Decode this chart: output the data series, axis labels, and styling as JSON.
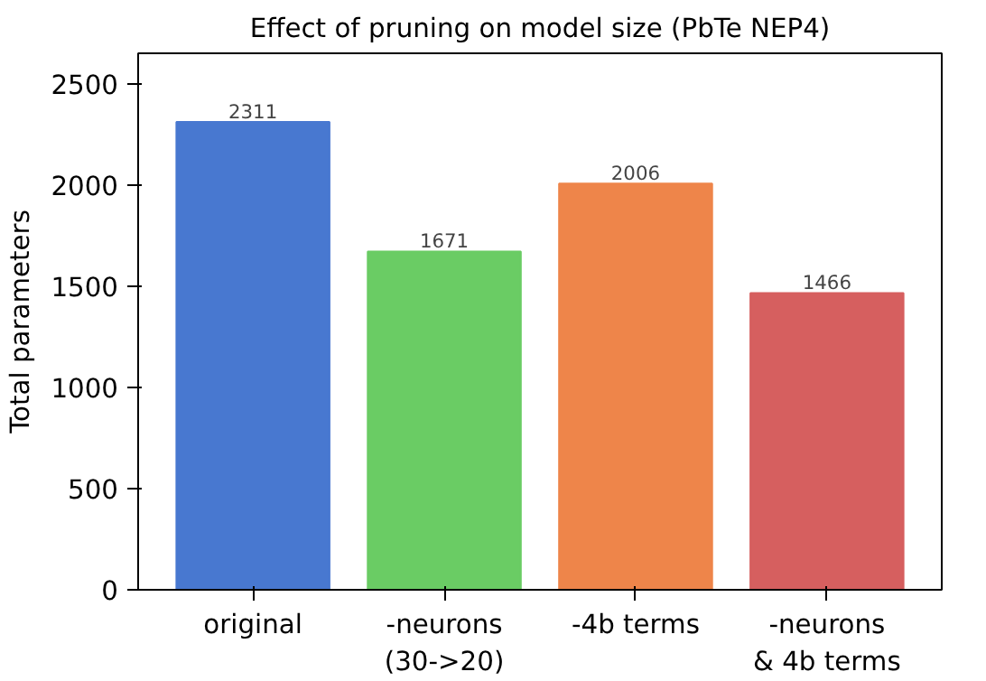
{
  "chart_data": {
    "type": "bar",
    "title": "Effect of pruning on model size (PbTe NEP4)",
    "ylabel": "Total parameters",
    "categories": [
      "original",
      "-neurons\n(30->20)",
      "-4b terms",
      "-neurons\n& 4b terms"
    ],
    "values": [
      2311,
      1671,
      2006,
      1466
    ],
    "colors": [
      "#4878d0",
      "#6acc64",
      "#ee854a",
      "#d65f5f"
    ],
    "ylim": [
      0,
      2650
    ],
    "yticks": [
      0,
      500,
      1000,
      1500,
      2000,
      2500
    ],
    "data_labels": true,
    "grid": false
  }
}
